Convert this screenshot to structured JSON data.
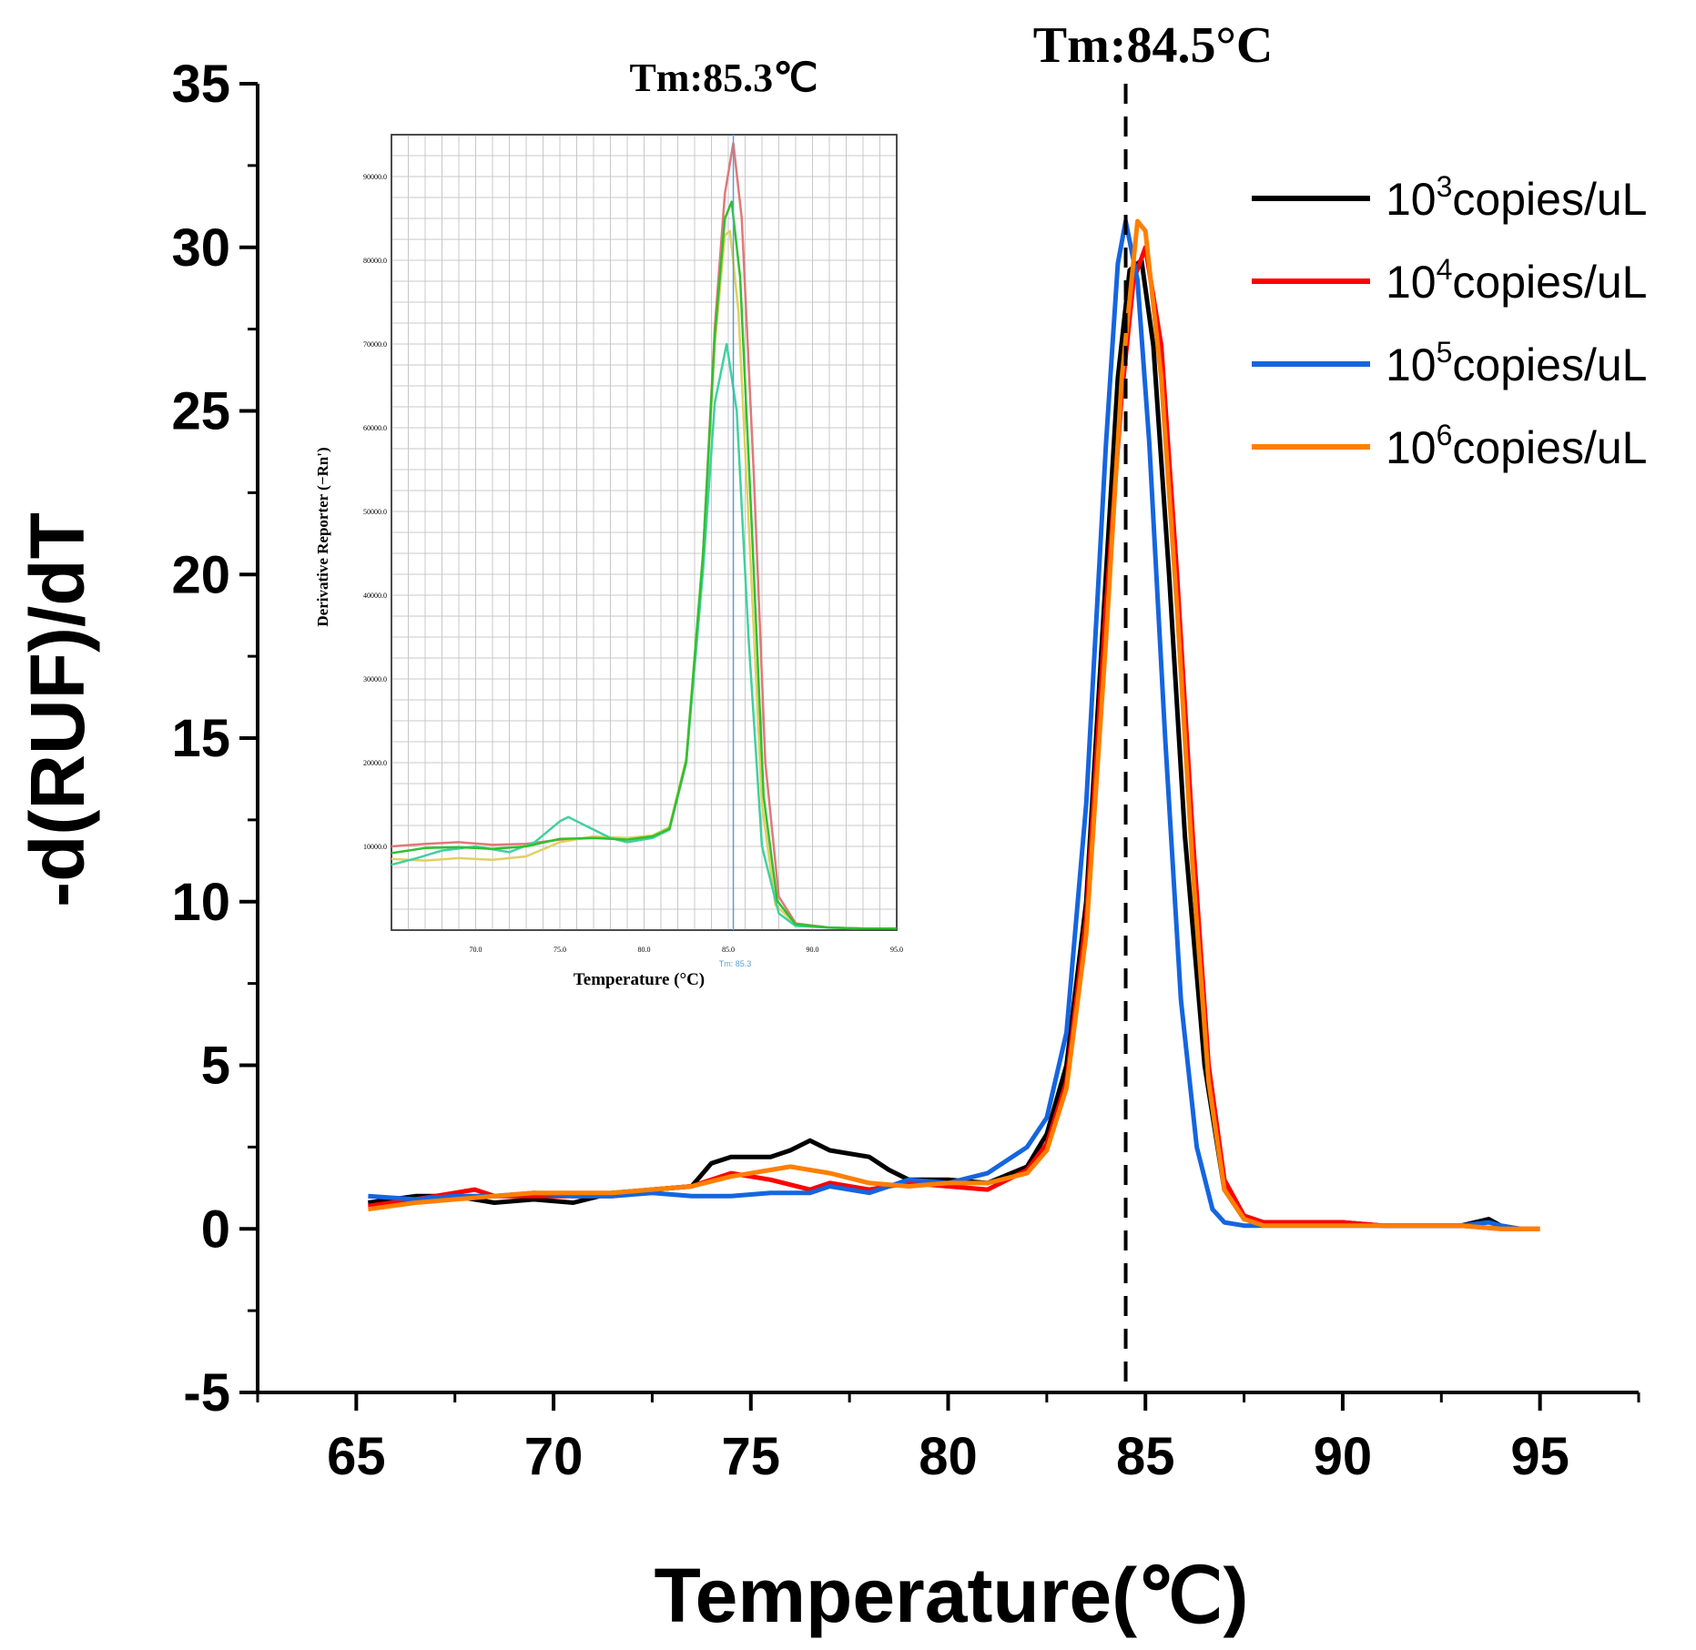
{
  "chart_data": [
    {
      "type": "line",
      "xlabel": "Temperature(℃)",
      "ylabel": "-d(RUF)/dT",
      "xlim": [
        62.5,
        97.5
      ],
      "ylim": [
        -5,
        35
      ],
      "xticks": [
        65,
        70,
        75,
        80,
        85,
        90,
        95
      ],
      "yticks": [
        -5,
        0,
        5,
        10,
        15,
        20,
        25,
        30,
        35
      ],
      "annotation": {
        "text": "Tm:84.5°C",
        "x": 84.5,
        "style": "dashed vertical line"
      },
      "legend_position": "top-right",
      "series": [
        {
          "name_base": "10",
          "name_exp": "3",
          "name_suffix": "copies/uL",
          "color": "#000000",
          "x": [
            65.3,
            66.5,
            67.5,
            68.5,
            69.5,
            70.5,
            71.5,
            72.5,
            73.5,
            74.0,
            74.5,
            75.5,
            76.0,
            76.5,
            77.0,
            78.0,
            78.5,
            79.0,
            80.0,
            81.0,
            82.0,
            82.5,
            83.0,
            83.5,
            84.0,
            84.3,
            84.6,
            84.9,
            85.2,
            85.6,
            86.0,
            86.5,
            87.0,
            87.5,
            88.0,
            89.0,
            90.0,
            91.0,
            92.0,
            93.0,
            93.7,
            94.0,
            94.5
          ],
          "y": [
            0.8,
            1.0,
            1.0,
            0.8,
            0.9,
            0.8,
            1.1,
            1.2,
            1.3,
            2.0,
            2.2,
            2.2,
            2.4,
            2.7,
            2.4,
            2.2,
            1.8,
            1.5,
            1.5,
            1.4,
            1.9,
            2.9,
            5.0,
            10.0,
            20.0,
            26.0,
            29.3,
            29.6,
            27.0,
            20.0,
            12.0,
            5.0,
            1.2,
            0.3,
            0.2,
            0.2,
            0.2,
            0.1,
            0.1,
            0.1,
            0.3,
            0.1,
            0.0
          ]
        },
        {
          "name_base": "10",
          "name_exp": "4",
          "name_suffix": "copies/uL",
          "color": "#ff0000",
          "x": [
            65.3,
            66.5,
            67.5,
            68.0,
            68.5,
            69.5,
            70.5,
            71.5,
            72.5,
            73.5,
            74.0,
            74.5,
            75.5,
            76.5,
            77.0,
            78.0,
            79.0,
            80.0,
            81.0,
            82.0,
            82.5,
            83.0,
            83.5,
            84.0,
            84.4,
            84.7,
            85.0,
            85.4,
            85.8,
            86.2,
            86.6,
            87.0,
            87.5,
            88.0,
            89.0,
            90.0,
            91.0,
            92.0,
            93.0,
            94.0,
            95.0
          ],
          "y": [
            0.7,
            0.9,
            1.1,
            1.2,
            1.0,
            1.0,
            1.0,
            1.0,
            1.2,
            1.3,
            1.5,
            1.7,
            1.5,
            1.2,
            1.4,
            1.2,
            1.4,
            1.3,
            1.2,
            1.8,
            2.6,
            4.5,
            9.5,
            19.0,
            25.5,
            29.0,
            30.0,
            27.0,
            20.0,
            12.0,
            5.0,
            1.5,
            0.4,
            0.2,
            0.2,
            0.2,
            0.1,
            0.1,
            0.1,
            0.0,
            0.0
          ]
        },
        {
          "name_base": "10",
          "name_exp": "5",
          "name_suffix": "copies/uL",
          "color": "#1565e0",
          "x": [
            65.3,
            66.5,
            67.5,
            68.5,
            69.5,
            70.5,
            71.5,
            72.5,
            73.5,
            74.5,
            75.5,
            76.5,
            77.0,
            78.0,
            78.5,
            79.0,
            80.0,
            81.0,
            82.0,
            82.5,
            83.0,
            83.5,
            84.0,
            84.3,
            84.5,
            84.8,
            85.1,
            85.5,
            85.9,
            86.3,
            86.7,
            87.0,
            87.5,
            88.0,
            89.0,
            90.0,
            91.0,
            92.0,
            93.0,
            93.7,
            94.0,
            94.5
          ],
          "y": [
            1.0,
            0.9,
            1.0,
            1.0,
            1.1,
            1.0,
            1.0,
            1.1,
            1.0,
            1.0,
            1.1,
            1.1,
            1.3,
            1.1,
            1.3,
            1.5,
            1.4,
            1.7,
            2.5,
            3.4,
            6.0,
            13.0,
            24.0,
            29.5,
            30.8,
            29.0,
            24.0,
            15.0,
            7.0,
            2.5,
            0.6,
            0.2,
            0.1,
            0.1,
            0.1,
            0.1,
            0.1,
            0.1,
            0.1,
            0.2,
            0.1,
            0.0
          ]
        },
        {
          "name_base": "10",
          "name_exp": "6",
          "name_suffix": "copies/uL",
          "color": "#ff7f00",
          "x": [
            65.3,
            66.5,
            67.5,
            68.5,
            69.5,
            70.5,
            71.5,
            72.5,
            73.5,
            74.5,
            75.5,
            76.0,
            76.5,
            77.0,
            78.0,
            79.0,
            80.0,
            81.0,
            82.0,
            82.5,
            83.0,
            83.5,
            84.0,
            84.4,
            84.8,
            85.0,
            85.4,
            85.8,
            86.2,
            86.6,
            87.0,
            87.5,
            88.0,
            89.0,
            90.0,
            91.0,
            92.0,
            93.0,
            94.0,
            95.0
          ],
          "y": [
            0.6,
            0.8,
            0.9,
            1.0,
            1.1,
            1.1,
            1.1,
            1.2,
            1.3,
            1.6,
            1.8,
            1.9,
            1.8,
            1.7,
            1.4,
            1.3,
            1.4,
            1.4,
            1.7,
            2.4,
            4.3,
            9.0,
            18.0,
            26.0,
            30.8,
            30.5,
            26.0,
            19.0,
            11.0,
            4.5,
            1.2,
            0.3,
            0.1,
            0.1,
            0.1,
            0.1,
            0.1,
            0.1,
            0.0,
            0.0
          ]
        }
      ]
    },
    {
      "type": "line",
      "title": "Tm:85.3℃",
      "xlabel": "Temperature (°C)",
      "ylabel": "Derivative Reporter (−Rn')",
      "xlim": [
        65,
        95
      ],
      "ylim": [
        0,
        95000
      ],
      "xticks": [
        70.0,
        75.0,
        80.0,
        85.0,
        90.0,
        95.0
      ],
      "xtick_labels": [
        "70.0",
        "75.0",
        "80.0",
        "85.0",
        "90.0",
        "95.0"
      ],
      "yticks": [
        10000,
        20000,
        30000,
        40000,
        50000,
        60000,
        70000,
        80000,
        90000
      ],
      "ytick_labels": [
        "10000.0",
        "20000.0",
        "30000.0",
        "40000.0",
        "50000.0",
        "60000.0",
        "70000.0",
        "80000.0",
        "90000.0"
      ],
      "marker": {
        "x": 85.3,
        "label": "Tm: 85.3",
        "color": "#5aa0d0"
      },
      "series": [
        {
          "name": "inset-red",
          "color": "#e07878",
          "x": [
            65.0,
            67.0,
            69.0,
            71.0,
            73.0,
            75.0,
            77.0,
            79.0,
            80.5,
            81.5,
            82.5,
            83.5,
            84.2,
            84.8,
            85.3,
            85.8,
            86.5,
            87.2,
            88.0,
            89.0,
            91.0,
            93.0,
            95.0
          ],
          "y": [
            10000,
            10300,
            10500,
            10200,
            10300,
            10800,
            11000,
            10900,
            11200,
            12000,
            20000,
            45000,
            72000,
            88000,
            94000,
            85000,
            55000,
            20000,
            4000,
            800,
            300,
            200,
            200
          ]
        },
        {
          "name": "inset-yellow",
          "color": "#e0d060",
          "x": [
            65.0,
            67.0,
            69.0,
            71.0,
            73.0,
            75.0,
            77.0,
            79.0,
            80.5,
            81.5,
            82.5,
            83.5,
            84.2,
            84.8,
            85.1,
            85.6,
            86.3,
            87.0,
            87.8,
            89.0,
            91.0,
            93.0,
            95.0
          ],
          "y": [
            8500,
            8300,
            8600,
            8400,
            8800,
            10500,
            11200,
            11000,
            11300,
            12300,
            20500,
            45000,
            70000,
            83000,
            83500,
            74000,
            45000,
            15000,
            3000,
            700,
            300,
            200,
            200
          ]
        },
        {
          "name": "inset-teal",
          "color": "#40d0a0",
          "x": [
            65.0,
            66.5,
            68.0,
            70.0,
            72.0,
            73.5,
            75.0,
            75.5,
            76.5,
            78.0,
            79.0,
            80.5,
            81.5,
            82.5,
            83.5,
            84.2,
            84.9,
            85.5,
            86.2,
            87.0,
            88.0,
            89.0,
            91.0,
            93.0,
            95.0
          ],
          "y": [
            7800,
            8600,
            9500,
            10000,
            9300,
            10500,
            13000,
            13500,
            12500,
            11000,
            10500,
            11000,
            12000,
            20000,
            43000,
            63000,
            70000,
            62000,
            35000,
            10000,
            2000,
            500,
            300,
            200,
            200
          ]
        },
        {
          "name": "inset-green",
          "color": "#30c030",
          "x": [
            65.0,
            67.0,
            69.0,
            71.0,
            73.0,
            75.0,
            77.0,
            79.0,
            80.5,
            81.5,
            82.5,
            83.5,
            84.2,
            84.8,
            85.2,
            85.7,
            86.4,
            87.1,
            87.9,
            89.0,
            91.0,
            93.0,
            95.0
          ],
          "y": [
            9200,
            9800,
            9900,
            9700,
            10000,
            10900,
            11000,
            10800,
            11200,
            12100,
            20200,
            45000,
            71000,
            85000,
            87000,
            78000,
            48000,
            16000,
            3500,
            700,
            300,
            200,
            200
          ]
        }
      ]
    }
  ],
  "legend": {
    "exp_note": "superscript exponents shown on base 10"
  }
}
